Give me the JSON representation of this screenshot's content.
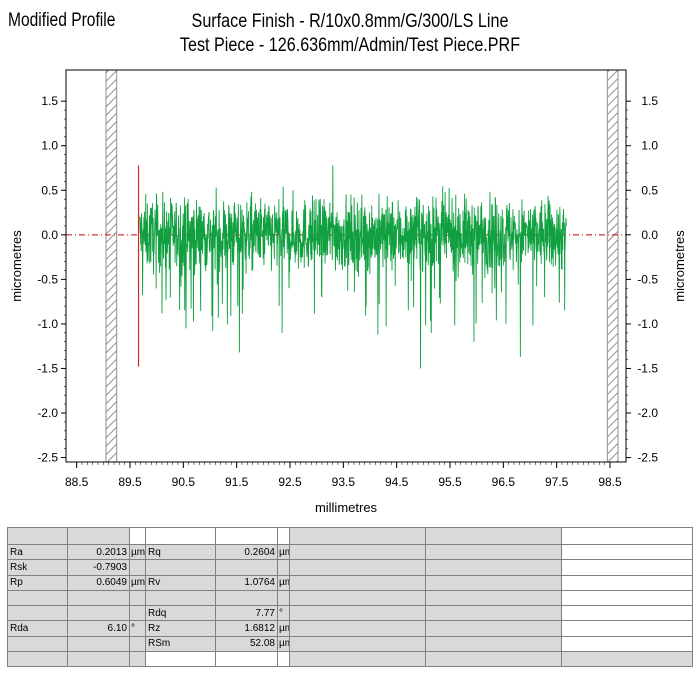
{
  "header": {
    "top_left": "Modified Profile",
    "title_line1": "Surface Finish - R/10x0.8mm/G/300/LS Line",
    "title_line2": "Test Piece - 126.636mm/Admin/Test Piece.PRF"
  },
  "chart_data": {
    "type": "line",
    "title": "Surface Finish - R/10x0.8mm/G/300/LS Line",
    "subtitle": "Test Piece - 126.636mm/Admin/Test Piece.PRF",
    "xlabel": "millimetres",
    "ylabel": "micrometres",
    "xlim": [
      88.3,
      98.8
    ],
    "ylim": [
      -2.55,
      1.85
    ],
    "xticks": [
      "88.5",
      "89.5",
      "90.5",
      "91.5",
      "92.5",
      "93.5",
      "94.5",
      "95.5",
      "96.5",
      "97.5",
      "98.5"
    ],
    "yticks": [
      "1.5",
      "1.0",
      "0.5",
      "0.0",
      "-0.5",
      "-1.0",
      "-1.5",
      "-2.0",
      "-2.5"
    ],
    "grid": false,
    "reference_line": {
      "y": 0.0,
      "style": "dash-dot",
      "color": "#cc0000"
    },
    "hatched_bands": [
      [
        89.05,
        89.25
      ],
      [
        98.45,
        98.65
      ]
    ],
    "marker_line": {
      "x": 89.66,
      "y_top": 0.78,
      "y_bottom": -1.48,
      "color": "#dd2222"
    },
    "series": [
      {
        "x_start": 89.68,
        "x_end": 97.68,
        "color": "#10a040",
        "typical_range": [
          -0.55,
          0.5
        ],
        "max": 0.78,
        "min": -1.5
      }
    ]
  },
  "stats": {
    "rows": [
      {
        "p1": "Ra",
        "v1": "0.2013",
        "u1": "µm",
        "p2": "Rq",
        "v2": "0.2604",
        "u2": "µm"
      },
      {
        "p1": "Rsk",
        "v1": "-0.7903",
        "u1": "",
        "p2": "",
        "v2": "",
        "u2": ""
      },
      {
        "p1": "Rp",
        "v1": "0.6049",
        "u1": "µm",
        "p2": "Rv",
        "v2": "1.0764",
        "u2": "µm"
      },
      {
        "p1": "",
        "v1": "",
        "u1": "",
        "p2": "",
        "v2": "",
        "u2": ""
      },
      {
        "p1": "",
        "v1": "",
        "u1": "",
        "p2": "Rdq",
        "v2": "7.77",
        "u2": "°"
      },
      {
        "p1": "Rda",
        "v1": "6.10",
        "u1": "°",
        "p2": "Rz",
        "v2": "1.6812",
        "u2": "µm"
      },
      {
        "p1": "",
        "v1": "",
        "u1": "",
        "p2": "RSm",
        "v2": "52.08",
        "u2": "µm"
      },
      {
        "p1": "",
        "v1": "",
        "u1": "",
        "p2": "",
        "v2": "",
        "u2": ""
      }
    ]
  }
}
